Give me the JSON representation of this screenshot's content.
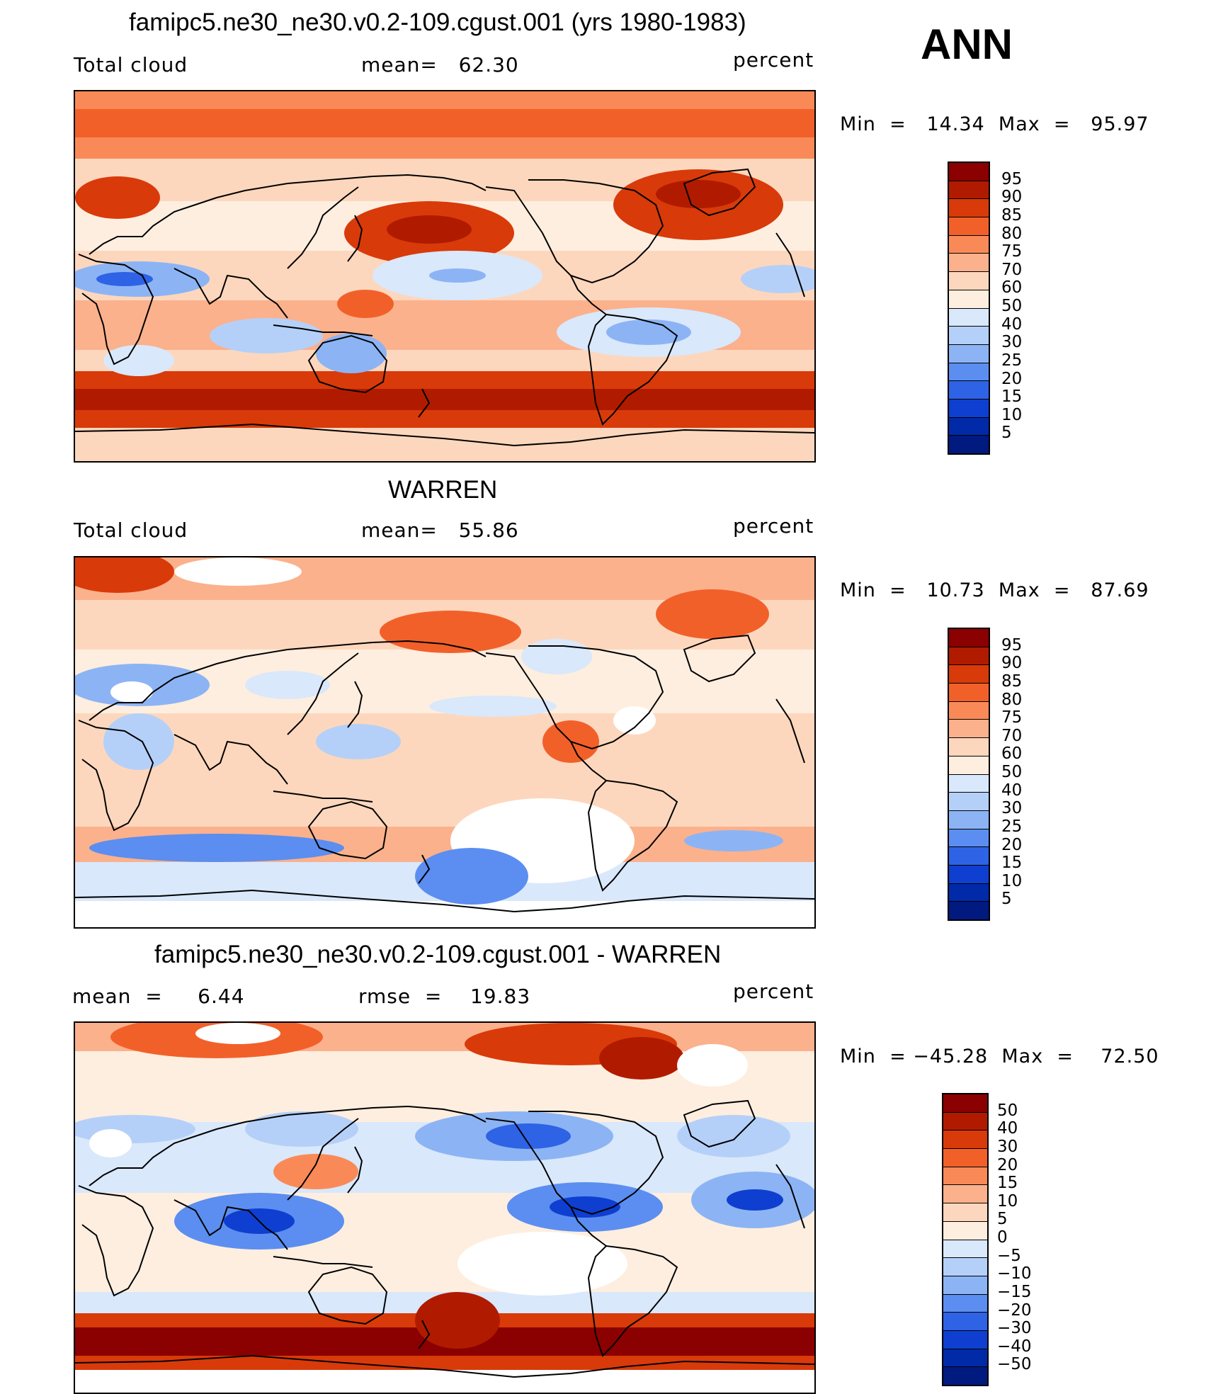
{
  "season": "ANN",
  "panels": [
    {
      "title": "famipc5.ne30_ne30.v0.2-109.cgust.001 (yrs 1980-1983)",
      "left_label": "Total cloud",
      "center_label": "mean=   62.30",
      "units": "percent",
      "minmax": "Min  =   14.34  Max  =   95.97",
      "colorbar": {
        "labels": [
          "95",
          "90",
          "85",
          "80",
          "75",
          "70",
          "60",
          "50",
          "40",
          "30",
          "25",
          "20",
          "15",
          "10",
          "5"
        ],
        "colors": [
          "#8b0000",
          "#b01b00",
          "#d93a0a",
          "#f2602a",
          "#f98a57",
          "#fbb18c",
          "#fdd7bd",
          "#feeedf",
          "#d9e8fb",
          "#b5d0f8",
          "#8cb4f4",
          "#5b8ef0",
          "#2e63e6",
          "#0e3fd0",
          "#002aa8",
          "#001a80"
        ]
      },
      "shading": "model"
    },
    {
      "title": "WARREN",
      "left_label": "Total cloud",
      "center_label": "mean=   55.86",
      "units": "percent",
      "minmax": "Min  =   10.73  Max  =   87.69",
      "colorbar": {
        "labels": [
          "95",
          "90",
          "85",
          "80",
          "75",
          "70",
          "60",
          "50",
          "40",
          "30",
          "25",
          "20",
          "15",
          "10",
          "5"
        ],
        "colors": [
          "#8b0000",
          "#b01b00",
          "#d93a0a",
          "#f2602a",
          "#f98a57",
          "#fbb18c",
          "#fdd7bd",
          "#feeedf",
          "#d9e8fb",
          "#b5d0f8",
          "#8cb4f4",
          "#5b8ef0",
          "#2e63e6",
          "#0e3fd0",
          "#002aa8",
          "#001a80"
        ]
      },
      "shading": "obs"
    },
    {
      "title": "famipc5.ne30_ne30.v0.2-109.cgust.001 - WARREN",
      "left_label": "mean  =     6.44",
      "center_label": "rmse  =    19.83",
      "units": "percent",
      "minmax": "Min  = −45.28  Max  =    72.50",
      "colorbar": {
        "labels": [
          "50",
          "40",
          "30",
          "20",
          "15",
          "10",
          "5",
          "0",
          "−5",
          "−10",
          "−15",
          "−20",
          "−30",
          "−40",
          "−50"
        ],
        "colors": [
          "#8b0000",
          "#b01b00",
          "#d93a0a",
          "#f2602a",
          "#f98a57",
          "#fbb18c",
          "#fdd7bd",
          "#feeedf",
          "#d9e8fb",
          "#b5d0f8",
          "#8cb4f4",
          "#5b8ef0",
          "#2e63e6",
          "#0e3fd0",
          "#002aa8",
          "#001a80"
        ]
      },
      "shading": "diff"
    }
  ]
}
